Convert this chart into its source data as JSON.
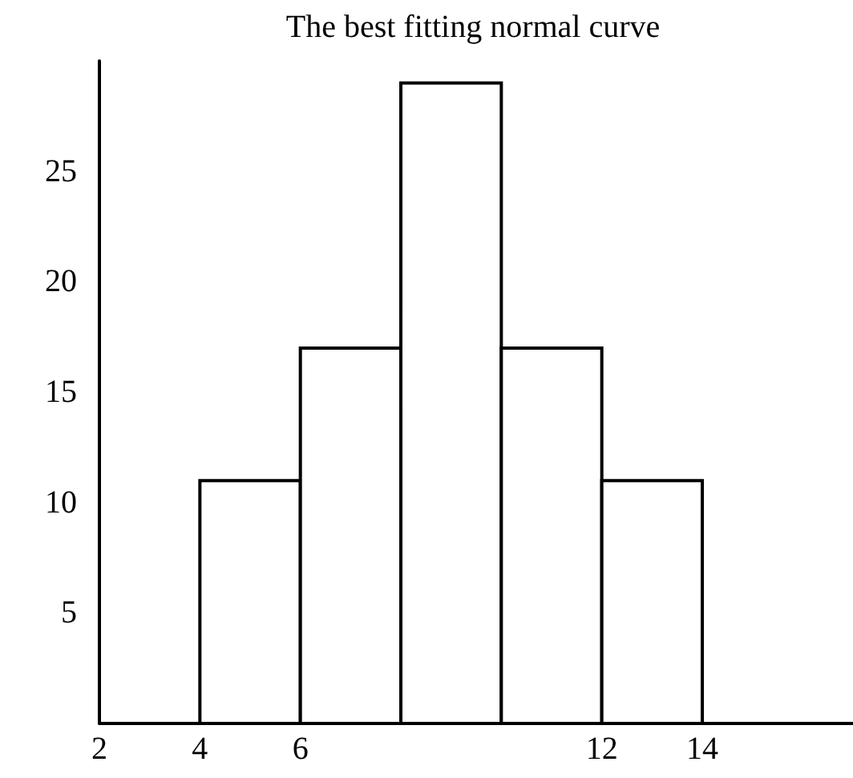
{
  "chart_data": {
    "type": "histogram",
    "title": "The best fitting normal curve",
    "bins": [
      4,
      6,
      8,
      10,
      12,
      14
    ],
    "values": [
      11,
      17,
      29,
      17,
      11
    ],
    "color": "#ffffff",
    "xlim": [
      2,
      17
    ],
    "xticks": [
      2,
      4,
      6,
      12,
      14
    ],
    "ylim": [
      0,
      30
    ],
    "yticks": [
      5,
      10,
      15,
      20,
      25
    ],
    "grid": false
  }
}
